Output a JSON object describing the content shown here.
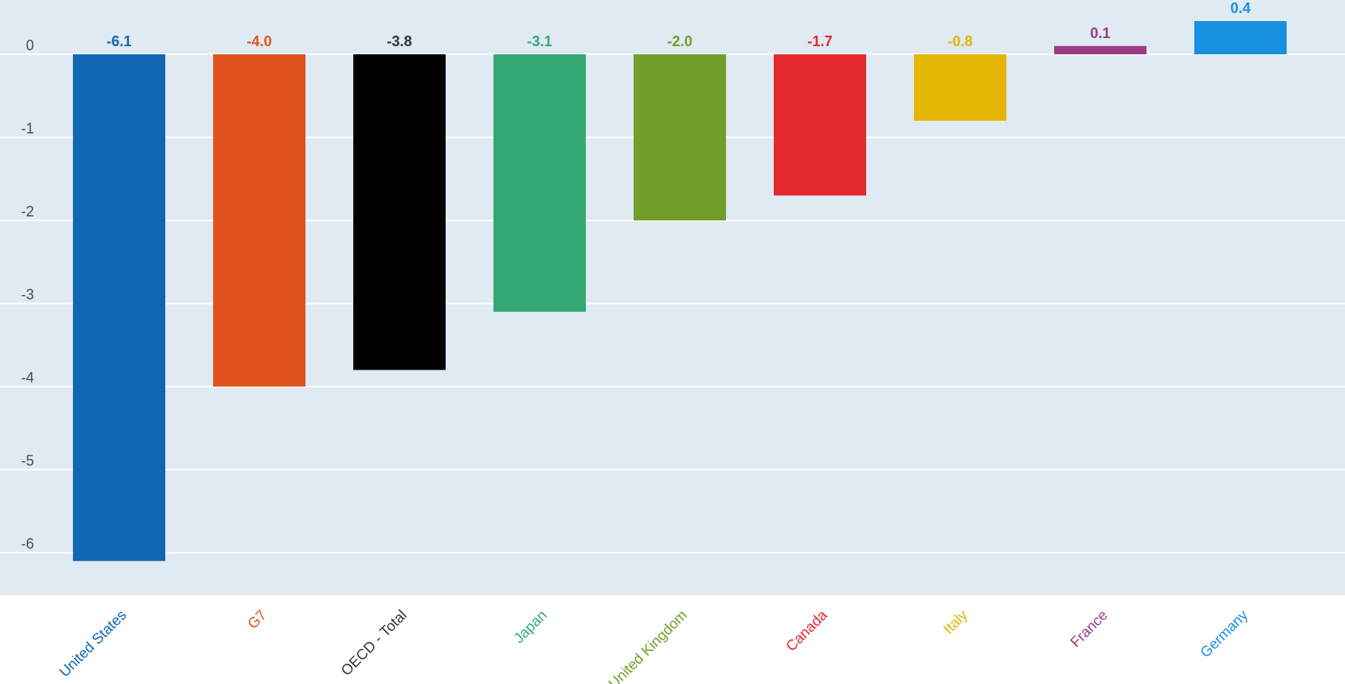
{
  "chart_data": {
    "type": "bar",
    "title": "",
    "xlabel": "",
    "ylabel": "",
    "ylim": [
      -6.5,
      0.5
    ],
    "yticks": [
      0,
      -1,
      -2,
      -3,
      -4,
      -5,
      -6
    ],
    "categories": [
      "United States",
      "G7",
      "OECD - Total",
      "Japan",
      "United Kingdom",
      "Canada",
      "Italy",
      "France",
      "Germany"
    ],
    "values": [
      -6.1,
      -4.0,
      -3.8,
      -3.1,
      -2.0,
      -1.7,
      -0.8,
      0.1,
      0.4
    ],
    "value_labels": [
      "-6.1",
      "-4.0",
      "-3.8",
      "-3.1",
      "-2.0",
      "-1.7",
      "-0.8",
      "0.1",
      "0.4"
    ],
    "colors": [
      "#1166b2",
      "#e0531f",
      "#000000",
      "#33a874",
      "#719e28",
      "#e3292f",
      "#e3b505",
      "#9b3a85",
      "#1690df"
    ],
    "label_colors": [
      "#1166b2",
      "#e0531f",
      "#333333",
      "#33a874",
      "#719e28",
      "#e3292f",
      "#e3b505",
      "#9b3a85",
      "#1690df"
    ],
    "grid": true,
    "legend": "none"
  }
}
